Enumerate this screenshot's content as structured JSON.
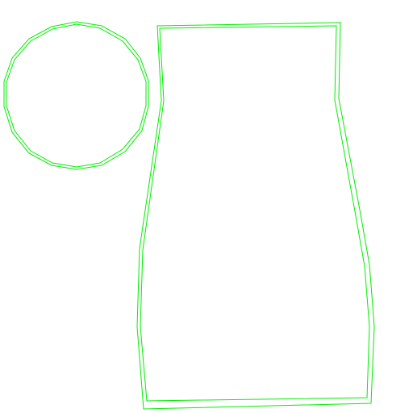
{
  "stroke_color": "#00ee00",
  "background_color": "#ffffff",
  "shapes": [
    "circle-outline",
    "vase-outline"
  ]
}
